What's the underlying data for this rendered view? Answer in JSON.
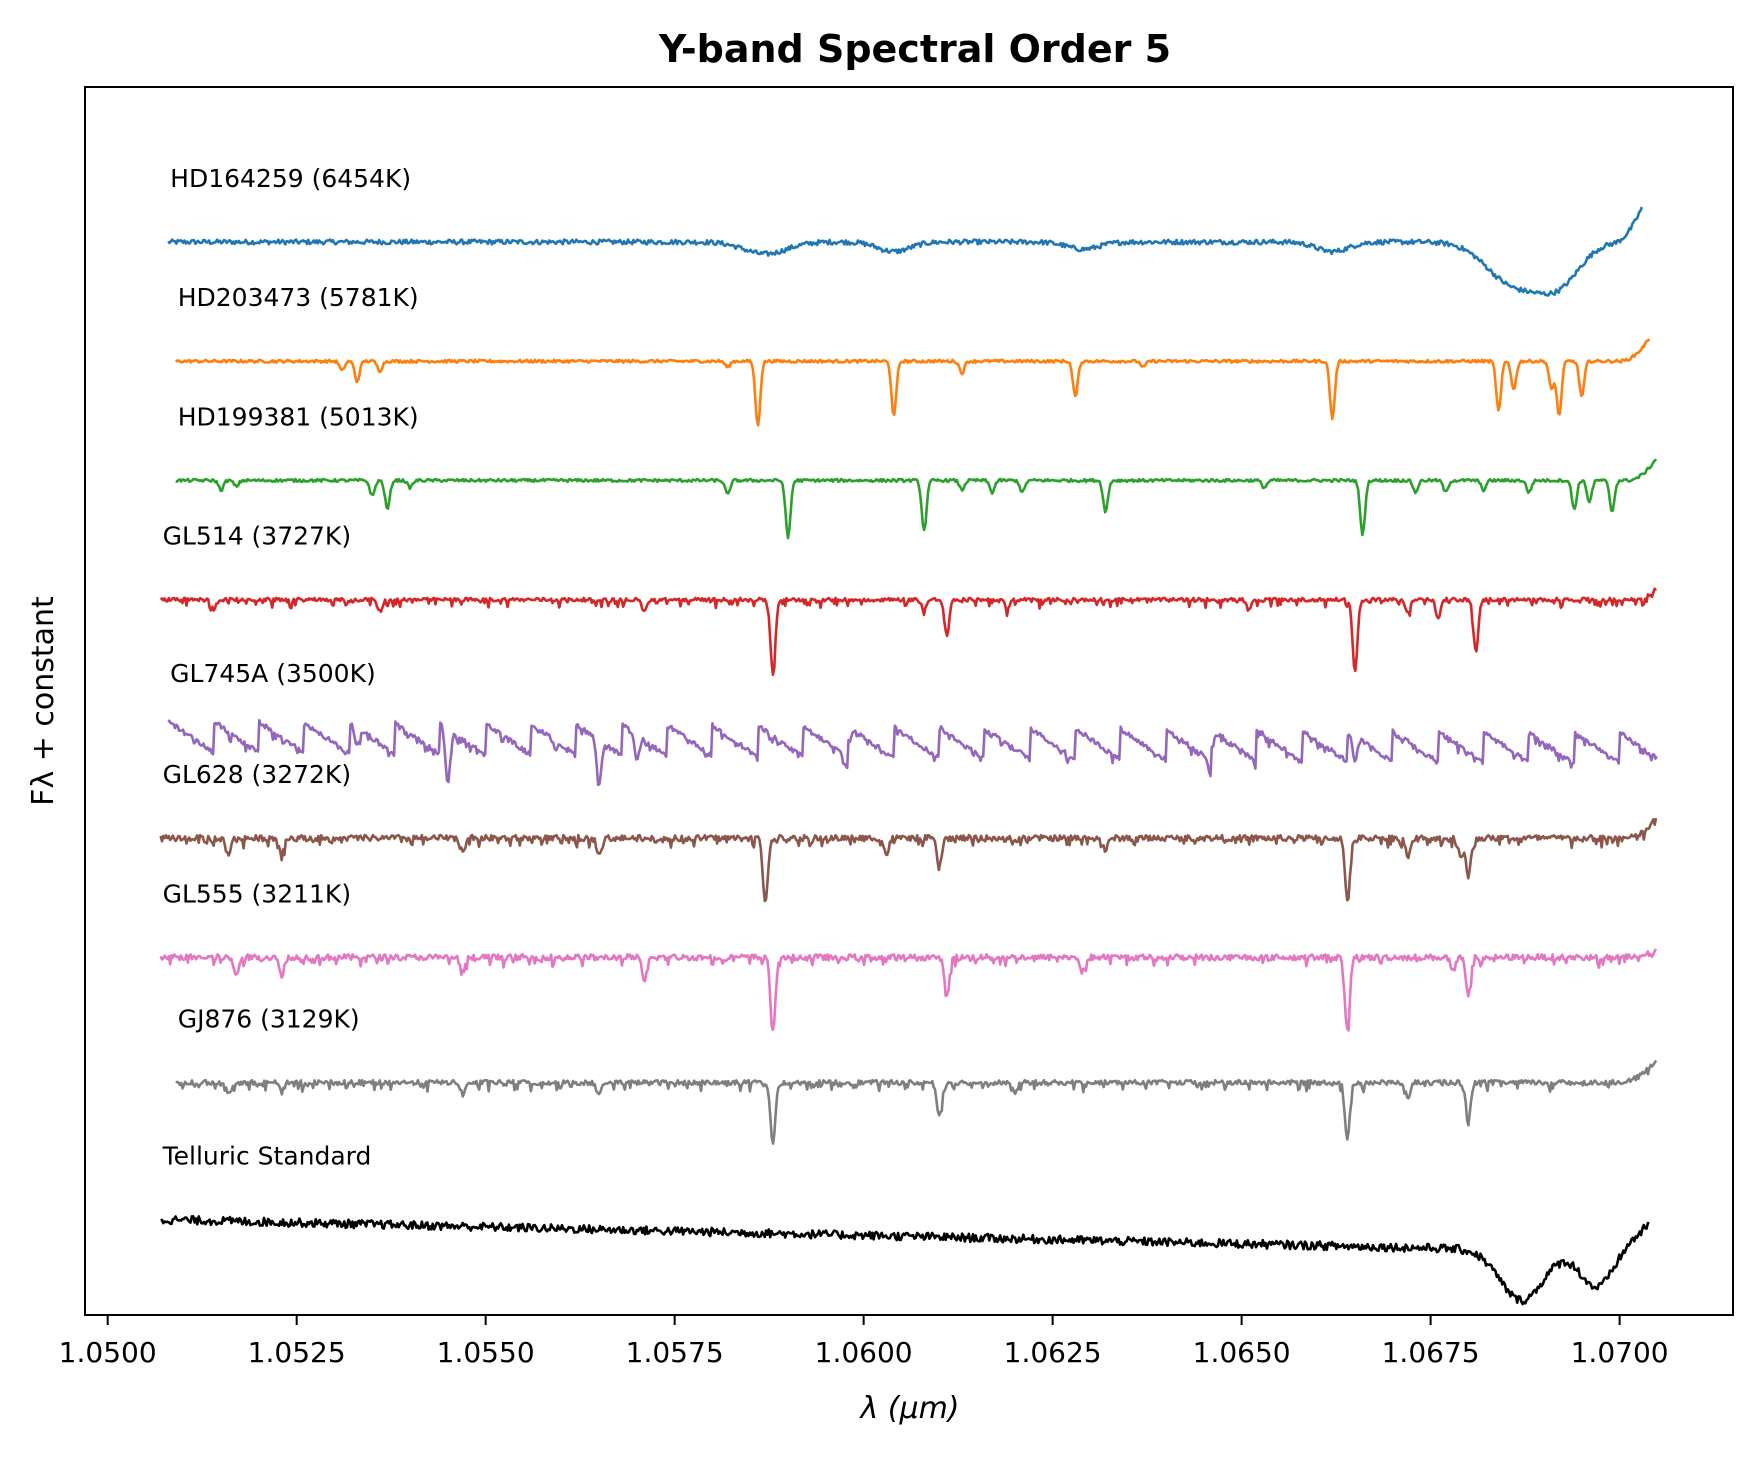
{
  "chart_data": {
    "type": "line",
    "title": "Y-band Spectral Order 5",
    "xlabel": "λ (μm)",
    "ylabel": "Fλ + constant",
    "xlim": [
      1.0497,
      1.0715
    ],
    "xticks": [
      "1.0500",
      "1.0525",
      "1.0550",
      "1.0575",
      "1.0600",
      "1.0625",
      "1.0650",
      "1.0675",
      "1.0700"
    ],
    "yticks": [],
    "grid": false,
    "legend": "none",
    "series": [
      {
        "name": "HD164259 (6454K)",
        "color": "#1f77b4",
        "offset": 8.0,
        "xmin": 1.0508,
        "xmax": 1.0703,
        "noise": 0.02,
        "lines": [],
        "broad": [
          [
            1.0587,
            0.1,
            0.0004
          ],
          [
            1.0604,
            0.08,
            0.0003
          ],
          [
            1.0629,
            0.06,
            0.0003
          ],
          [
            1.0662,
            0.08,
            0.0003
          ],
          [
            1.0686,
            0.35,
            0.0005
          ],
          [
            1.0692,
            0.32,
            0.0004
          ]
        ],
        "rise": [
          1.0699,
          0.3
        ]
      },
      {
        "name": "HD203473 (5781K)",
        "color": "#ff7f0e",
        "offset": 7.0,
        "xmin": 1.0509,
        "xmax": 1.0704,
        "noise": 0.012,
        "lines": [
          [
            1.0531,
            0.08
          ],
          [
            1.0533,
            0.17
          ],
          [
            1.0536,
            0.08
          ],
          [
            1.0582,
            0.05
          ],
          [
            1.0586,
            0.54
          ],
          [
            1.0604,
            0.46
          ],
          [
            1.0613,
            0.1
          ],
          [
            1.0628,
            0.3
          ],
          [
            1.0637,
            0.05
          ],
          [
            1.0662,
            0.48
          ],
          [
            1.0684,
            0.42
          ],
          [
            1.0686,
            0.24
          ],
          [
            1.0691,
            0.24
          ],
          [
            1.0692,
            0.46
          ],
          [
            1.0695,
            0.3
          ]
        ],
        "broad": [],
        "rise": [
          1.07,
          0.2
        ]
      },
      {
        "name": "HD199381 (5013K)",
        "color": "#2ca02c",
        "offset": 6.0,
        "xmin": 1.0509,
        "xmax": 1.0705,
        "noise": 0.012,
        "lines": [
          [
            1.0515,
            0.08
          ],
          [
            1.0517,
            0.05
          ],
          [
            1.0535,
            0.13
          ],
          [
            1.0537,
            0.24
          ],
          [
            1.054,
            0.06
          ],
          [
            1.0582,
            0.12
          ],
          [
            1.059,
            0.48
          ],
          [
            1.0608,
            0.42
          ],
          [
            1.0613,
            0.08
          ],
          [
            1.0617,
            0.1
          ],
          [
            1.0621,
            0.1
          ],
          [
            1.0632,
            0.26
          ],
          [
            1.0653,
            0.06
          ],
          [
            1.0666,
            0.46
          ],
          [
            1.0673,
            0.1
          ],
          [
            1.0677,
            0.1
          ],
          [
            1.0682,
            0.08
          ],
          [
            1.0688,
            0.1
          ],
          [
            1.0694,
            0.24
          ],
          [
            1.0696,
            0.18
          ],
          [
            1.0699,
            0.26
          ]
        ],
        "broad": [],
        "rise": [
          1.0701,
          0.2
        ]
      },
      {
        "name": "GL514 (3727K)",
        "color": "#d62728",
        "offset": 5.0,
        "xmin": 1.0507,
        "xmax": 1.0705,
        "noise": 0.015,
        "lines": [
          [
            1.0514,
            0.08
          ],
          [
            1.0536,
            0.1
          ],
          [
            1.0571,
            0.1
          ],
          [
            1.0588,
            0.62
          ],
          [
            1.0611,
            0.3
          ],
          [
            1.0608,
            0.08
          ],
          [
            1.0619,
            0.08
          ],
          [
            1.0651,
            0.08
          ],
          [
            1.0665,
            0.6
          ],
          [
            1.0672,
            0.1
          ],
          [
            1.0676,
            0.16
          ],
          [
            1.0681,
            0.44
          ]
        ],
        "broad": [],
        "rise": [
          1.0702,
          0.1
        ]
      },
      {
        "name": "GL745A (3500K)",
        "color": "#9467bd",
        "offset": 3.85,
        "xmin": 1.0508,
        "xmax": 1.0705,
        "noise": 0.02,
        "lines": [
          [
            1.0545,
            0.45
          ],
          [
            1.0533,
            0.15
          ],
          [
            1.0565,
            0.35
          ],
          [
            1.057,
            0.2
          ],
          [
            1.0598,
            0.12
          ],
          [
            1.0646,
            0.15
          ],
          [
            1.0665,
            0.2
          ]
        ],
        "broad": [],
        "wave": [
          0.13,
          0.0006
        ],
        "slope": -0.1,
        "rise": [
          1.0703,
          0.0
        ]
      },
      {
        "name": "GL628 (3272K)",
        "color": "#8c564b",
        "offset": 3.0,
        "xmin": 1.0507,
        "xmax": 1.0705,
        "noise": 0.025,
        "lines": [
          [
            1.0516,
            0.13
          ],
          [
            1.0523,
            0.12
          ],
          [
            1.0547,
            0.1
          ],
          [
            1.0565,
            0.12
          ],
          [
            1.0587,
            0.55
          ],
          [
            1.0603,
            0.14
          ],
          [
            1.061,
            0.25
          ],
          [
            1.0632,
            0.1
          ],
          [
            1.0664,
            0.52
          ],
          [
            1.0672,
            0.15
          ],
          [
            1.0679,
            0.15
          ],
          [
            1.068,
            0.33
          ]
        ],
        "broad": [],
        "rise": [
          1.0701,
          0.18
        ]
      },
      {
        "name": "GL555 (3211K)",
        "color": "#e377c2",
        "offset": 2.0,
        "xmin": 1.0507,
        "xmax": 1.0705,
        "noise": 0.025,
        "lines": [
          [
            1.0517,
            0.15
          ],
          [
            1.0523,
            0.15
          ],
          [
            1.0547,
            0.12
          ],
          [
            1.0571,
            0.2
          ],
          [
            1.0588,
            0.62
          ],
          [
            1.0611,
            0.33
          ],
          [
            1.0629,
            0.12
          ],
          [
            1.0664,
            0.62
          ],
          [
            1.068,
            0.33
          ],
          [
            1.0678,
            0.12
          ]
        ],
        "broad": [],
        "rise": [
          1.07,
          0.05
        ]
      },
      {
        "name": "GJ876 (3129K)",
        "color": "#7f7f7f",
        "offset": 0.95,
        "xmin": 1.0509,
        "xmax": 1.0705,
        "noise": 0.02,
        "lines": [
          [
            1.0516,
            0.1
          ],
          [
            1.0523,
            0.08
          ],
          [
            1.0547,
            0.1
          ],
          [
            1.0565,
            0.1
          ],
          [
            1.0588,
            0.52
          ],
          [
            1.061,
            0.28
          ],
          [
            1.062,
            0.1
          ],
          [
            1.0664,
            0.48
          ],
          [
            1.0672,
            0.12
          ],
          [
            1.068,
            0.32
          ]
        ],
        "broad": [],
        "rise": [
          1.07,
          0.2
        ]
      },
      {
        "name": "Telluric Standard",
        "color": "#000000",
        "offset": -0.2,
        "xmin": 1.0507,
        "xmax": 1.0704,
        "noise": 0.035,
        "lines": [],
        "broad": [
          [
            1.0687,
            0.42,
            0.0004
          ],
          [
            1.0697,
            0.3,
            0.0003
          ]
        ],
        "slope": -0.28,
        "rise": [
          1.0696,
          0.25
        ]
      }
    ]
  }
}
